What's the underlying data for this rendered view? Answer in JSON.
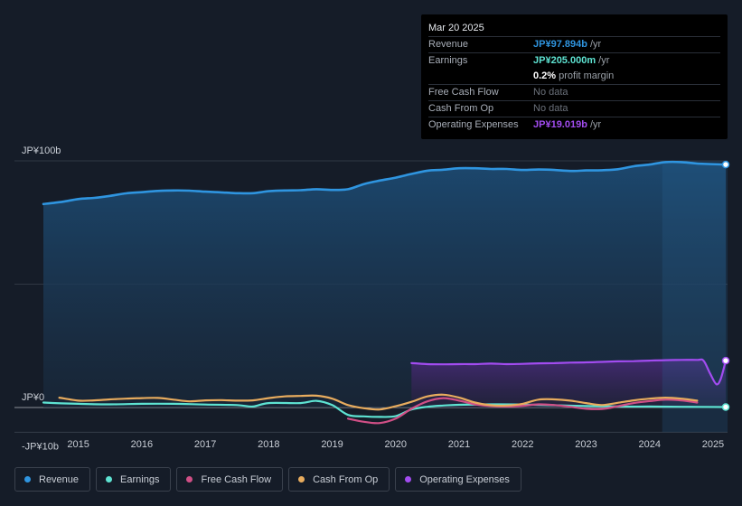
{
  "colors": {
    "revenue": "#2f95e0",
    "earnings": "#5ee3d2",
    "free_cash_flow": "#d04f86",
    "cash_from_op": "#e8ac5e",
    "operating_expenses": "#a24cf0"
  },
  "tooltip": {
    "date": "Mar 20 2025",
    "rows": [
      {
        "label": "Revenue",
        "value": "JP¥97.894b",
        "suffix": " /yr"
      },
      {
        "label": "Earnings",
        "value": "JP¥205.000m",
        "suffix": " /yr"
      },
      {
        "label": "",
        "value": "0.2%",
        "suffix": " profit margin"
      },
      {
        "label": "Free Cash Flow",
        "value": "No data",
        "suffix": ""
      },
      {
        "label": "Cash From Op",
        "value": "No data",
        "suffix": ""
      },
      {
        "label": "Operating Expenses",
        "value": "JP¥19.019b",
        "suffix": " /yr"
      }
    ]
  },
  "legend": [
    "Revenue",
    "Earnings",
    "Free Cash Flow",
    "Cash From Op",
    "Operating Expenses"
  ],
  "chart_data": {
    "type": "line",
    "title": "",
    "y_unit": "JP¥ billions",
    "ylim": [
      -10,
      100
    ],
    "y_tick_labels": [
      "JP¥100b",
      "JP¥0",
      "-JP¥10b"
    ],
    "y_tick_values": [
      100,
      0,
      -10
    ],
    "xlim": [
      2014.45,
      2025.2
    ],
    "x_ticks": [
      "2015",
      "2016",
      "2017",
      "2018",
      "2019",
      "2020",
      "2021",
      "2022",
      "2023",
      "2024",
      "2025"
    ],
    "forecast_shade_start": 2024.2,
    "series": [
      {
        "name": "Revenue",
        "points": [
          [
            2014.45,
            82.5
          ],
          [
            2014.75,
            83.4
          ],
          [
            2015.0,
            84.5
          ],
          [
            2015.25,
            85.0
          ],
          [
            2015.5,
            85.8
          ],
          [
            2015.75,
            86.8
          ],
          [
            2016.0,
            87.3
          ],
          [
            2016.25,
            87.8
          ],
          [
            2016.5,
            88.0
          ],
          [
            2016.75,
            87.9
          ],
          [
            2017.0,
            87.5
          ],
          [
            2017.25,
            87.2
          ],
          [
            2017.5,
            86.9
          ],
          [
            2017.75,
            86.9
          ],
          [
            2018.0,
            87.7
          ],
          [
            2018.25,
            88.0
          ],
          [
            2018.5,
            88.1
          ],
          [
            2018.75,
            88.5
          ],
          [
            2019.0,
            88.2
          ],
          [
            2019.25,
            88.5
          ],
          [
            2019.5,
            90.6
          ],
          [
            2019.75,
            92.0
          ],
          [
            2020.0,
            93.2
          ],
          [
            2020.25,
            94.7
          ],
          [
            2020.5,
            96.0
          ],
          [
            2020.75,
            96.4
          ],
          [
            2021.0,
            97.0
          ],
          [
            2021.25,
            97.0
          ],
          [
            2021.5,
            96.7
          ],
          [
            2021.75,
            96.7
          ],
          [
            2022.0,
            96.3
          ],
          [
            2022.25,
            96.5
          ],
          [
            2022.5,
            96.3
          ],
          [
            2022.75,
            95.9
          ],
          [
            2023.0,
            96.1
          ],
          [
            2023.25,
            96.2
          ],
          [
            2023.5,
            96.6
          ],
          [
            2023.75,
            97.8
          ],
          [
            2024.0,
            98.5
          ],
          [
            2024.25,
            99.5
          ],
          [
            2024.5,
            99.5
          ],
          [
            2024.75,
            98.9
          ],
          [
            2025.2,
            98.5
          ]
        ]
      },
      {
        "name": "Earnings",
        "points": [
          [
            2014.45,
            2.0
          ],
          [
            2015.0,
            1.5
          ],
          [
            2015.5,
            1.3
          ],
          [
            2016.0,
            1.5
          ],
          [
            2016.5,
            1.5
          ],
          [
            2017.0,
            1.2
          ],
          [
            2017.5,
            1.0
          ],
          [
            2017.75,
            0.4
          ],
          [
            2018.0,
            1.8
          ],
          [
            2018.5,
            1.8
          ],
          [
            2018.75,
            2.7
          ],
          [
            2019.0,
            1.0
          ],
          [
            2019.25,
            -3.0
          ],
          [
            2019.5,
            -3.6
          ],
          [
            2019.75,
            -3.8
          ],
          [
            2020.0,
            -3.5
          ],
          [
            2020.25,
            -0.8
          ],
          [
            2020.5,
            0.3
          ],
          [
            2020.75,
            0.8
          ],
          [
            2021.0,
            1.1
          ],
          [
            2021.5,
            1.3
          ],
          [
            2022.0,
            1.2
          ],
          [
            2022.5,
            0.9
          ],
          [
            2023.0,
            0.6
          ],
          [
            2023.5,
            0.4
          ],
          [
            2024.0,
            0.4
          ],
          [
            2024.5,
            0.3
          ],
          [
            2025.2,
            0.2
          ]
        ]
      },
      {
        "name": "Free Cash Flow",
        "points": [
          [
            2019.25,
            -4.5
          ],
          [
            2019.5,
            -5.8
          ],
          [
            2019.75,
            -6.3
          ],
          [
            2020.0,
            -4.5
          ],
          [
            2020.25,
            -0.5
          ],
          [
            2020.5,
            2.5
          ],
          [
            2020.75,
            3.8
          ],
          [
            2021.0,
            2.8
          ],
          [
            2021.25,
            1.3
          ],
          [
            2021.5,
            0.6
          ],
          [
            2021.75,
            0.4
          ],
          [
            2022.0,
            0.7
          ],
          [
            2022.25,
            1.3
          ],
          [
            2022.5,
            1.0
          ],
          [
            2022.75,
            0.3
          ],
          [
            2023.0,
            -0.5
          ],
          [
            2023.25,
            -0.6
          ],
          [
            2023.5,
            0.5
          ],
          [
            2023.75,
            1.8
          ],
          [
            2024.0,
            2.6
          ],
          [
            2024.25,
            3.2
          ],
          [
            2024.5,
            2.9
          ],
          [
            2024.75,
            2.0
          ]
        ]
      },
      {
        "name": "Cash From Op",
        "points": [
          [
            2014.7,
            4.0
          ],
          [
            2015.0,
            2.8
          ],
          [
            2015.25,
            2.9
          ],
          [
            2015.5,
            3.3
          ],
          [
            2015.75,
            3.6
          ],
          [
            2016.0,
            3.8
          ],
          [
            2016.25,
            3.9
          ],
          [
            2016.5,
            3.2
          ],
          [
            2016.75,
            2.5
          ],
          [
            2017.0,
            2.9
          ],
          [
            2017.25,
            3.0
          ],
          [
            2017.5,
            2.8
          ],
          [
            2017.75,
            2.9
          ],
          [
            2018.0,
            3.8
          ],
          [
            2018.25,
            4.5
          ],
          [
            2018.5,
            4.7
          ],
          [
            2018.75,
            4.8
          ],
          [
            2019.0,
            3.6
          ],
          [
            2019.25,
            1.0
          ],
          [
            2019.5,
            -0.3
          ],
          [
            2019.75,
            -0.8
          ],
          [
            2020.0,
            0.5
          ],
          [
            2020.25,
            2.3
          ],
          [
            2020.5,
            4.5
          ],
          [
            2020.75,
            5.2
          ],
          [
            2021.0,
            4.0
          ],
          [
            2021.25,
            2.0
          ],
          [
            2021.5,
            0.9
          ],
          [
            2021.75,
            0.8
          ],
          [
            2022.0,
            1.5
          ],
          [
            2022.25,
            3.2
          ],
          [
            2022.5,
            3.3
          ],
          [
            2022.75,
            2.8
          ],
          [
            2023.0,
            1.8
          ],
          [
            2023.25,
            1.0
          ],
          [
            2023.5,
            1.9
          ],
          [
            2023.75,
            2.9
          ],
          [
            2024.0,
            3.6
          ],
          [
            2024.25,
            4.0
          ],
          [
            2024.5,
            3.6
          ],
          [
            2024.75,
            2.8
          ]
        ]
      },
      {
        "name": "Operating Expenses",
        "points": [
          [
            2020.25,
            18.0
          ],
          [
            2020.5,
            17.6
          ],
          [
            2020.75,
            17.5
          ],
          [
            2021.0,
            17.6
          ],
          [
            2021.25,
            17.6
          ],
          [
            2021.5,
            17.8
          ],
          [
            2021.75,
            17.6
          ],
          [
            2022.0,
            17.7
          ],
          [
            2022.25,
            17.9
          ],
          [
            2022.5,
            18.0
          ],
          [
            2022.75,
            18.2
          ],
          [
            2023.0,
            18.3
          ],
          [
            2023.25,
            18.5
          ],
          [
            2023.5,
            18.7
          ],
          [
            2023.75,
            18.8
          ],
          [
            2024.0,
            19.0
          ],
          [
            2024.25,
            19.2
          ],
          [
            2024.5,
            19.3
          ],
          [
            2024.75,
            19.3
          ],
          [
            2024.85,
            19.0
          ],
          [
            2024.95,
            14.0
          ],
          [
            2025.05,
            9.5
          ],
          [
            2025.12,
            11.5
          ],
          [
            2025.2,
            19.0
          ]
        ]
      }
    ]
  }
}
